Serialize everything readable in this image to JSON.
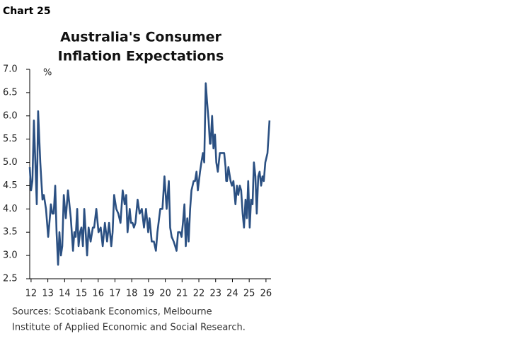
{
  "chart_data": {
    "type": "line",
    "label": "Chart 25",
    "title": [
      "Australia's Consumer",
      "Inflation Expectations"
    ],
    "y_unit": "%",
    "source": [
      "Sources: Scotiabank Economics, Melbourne",
      "Institute of Applied Economic and Social Research."
    ],
    "color": "#2b5082",
    "x": [
      11.92,
      12,
      12.08,
      12.17,
      12.34,
      12.42,
      12.55,
      12.68,
      12.76,
      12.89,
      13.02,
      13.14,
      13.18,
      13.27,
      13.35,
      13.44,
      13.52,
      13.61,
      13.69,
      13.78,
      13.86,
      13.95,
      14.07,
      14.2,
      14.37,
      14.5,
      14.58,
      14.66,
      14.75,
      14.83,
      14.92,
      15.0,
      15.09,
      15.17,
      15.34,
      15.43,
      15.55,
      15.68,
      15.76,
      15.89,
      16.02,
      16.15,
      16.27,
      16.4,
      16.53,
      16.65,
      16.78,
      16.86,
      16.95,
      17.08,
      17.2,
      17.33,
      17.46,
      17.58,
      17.67,
      17.75,
      17.88,
      17.96,
      18.05,
      18.13,
      18.22,
      18.35,
      18.47,
      18.6,
      18.73,
      18.85,
      18.98,
      19.06,
      19.19,
      19.32,
      19.44,
      19.53,
      19.7,
      19.83,
      19.95,
      20.08,
      20.21,
      20.29,
      20.38,
      20.5,
      20.59,
      20.67,
      20.76,
      20.88,
      20.97,
      21.05,
      21.14,
      21.22,
      21.31,
      21.39,
      21.48,
      21.56,
      21.69,
      21.77,
      21.86,
      21.94,
      22.07,
      22.15,
      22.24,
      22.32,
      22.41,
      22.49,
      22.58,
      22.66,
      22.7,
      22.79,
      22.87,
      22.96,
      23.04,
      23.13,
      23.25,
      23.38,
      23.51,
      23.59,
      23.63,
      23.68,
      23.76,
      23.89,
      23.97,
      24.06,
      24.18,
      24.27,
      24.35,
      24.44,
      24.52,
      24.61,
      24.69,
      24.78,
      24.86,
      24.94,
      25.03,
      25.11,
      25.2,
      25.28,
      25.37,
      25.45,
      25.54,
      25.62,
      25.71,
      25.79,
      25.87,
      25.96,
      26.09,
      26.21
    ],
    "values": [
      4.9,
      4.4,
      4.6,
      5.9,
      4.1,
      6.1,
      5.0,
      4.2,
      4.3,
      4.0,
      3.4,
      3.9,
      4.1,
      3.9,
      3.9,
      4.5,
      3.5,
      2.8,
      3.5,
      3.0,
      3.2,
      4.3,
      3.8,
      4.4,
      3.8,
      3.1,
      3.5,
      3.4,
      4.0,
      3.2,
      3.5,
      3.6,
      3.2,
      4.0,
      3.0,
      3.6,
      3.3,
      3.6,
      3.6,
      4.0,
      3.5,
      3.6,
      3.2,
      3.7,
      3.3,
      3.7,
      3.2,
      3.5,
      4.3,
      4.0,
      3.9,
      3.7,
      4.4,
      4.1,
      4.3,
      3.5,
      4.0,
      3.7,
      3.7,
      3.6,
      3.7,
      4.2,
      3.9,
      4.0,
      3.6,
      4.0,
      3.5,
      3.8,
      3.3,
      3.3,
      3.1,
      3.5,
      4.0,
      4.0,
      4.7,
      4.0,
      4.6,
      3.6,
      3.4,
      3.3,
      3.2,
      3.1,
      3.5,
      3.5,
      3.4,
      3.7,
      4.1,
      3.2,
      3.8,
      3.3,
      4.0,
      4.4,
      4.6,
      4.6,
      4.8,
      4.4,
      4.8,
      5.0,
      5.2,
      5.0,
      6.7,
      6.3,
      5.9,
      5.4,
      5.4,
      6.0,
      5.3,
      5.6,
      5.0,
      4.8,
      5.2,
      5.2,
      5.2,
      4.9,
      4.6,
      4.6,
      4.9,
      4.6,
      4.5,
      4.6,
      4.1,
      4.5,
      4.3,
      4.5,
      4.4,
      3.9,
      3.6,
      4.2,
      3.8,
      4.6,
      3.6,
      4.2,
      4.1,
      5.0,
      4.7,
      3.9,
      4.7,
      4.8,
      4.5,
      4.7,
      4.6,
      5.0,
      5.2,
      5.9
    ],
    "xlim": [
      11.92,
      26.3
    ],
    "xticks": [
      12,
      13,
      14,
      15,
      16,
      17,
      18,
      19,
      20,
      21,
      22,
      23,
      24,
      25,
      26
    ],
    "ylim": [
      2.5,
      7.0
    ],
    "yticks": [
      {
        "value": 2.5,
        "label": "2.5"
      },
      {
        "value": 3.0,
        "label": "3.0"
      },
      {
        "value": 3.5,
        "label": "3.5"
      },
      {
        "value": 4.0,
        "label": "4.0"
      },
      {
        "value": 4.5,
        "label": "4.5"
      },
      {
        "value": 5.0,
        "label": "5.0"
      },
      {
        "value": 5.5,
        "label": "5.5"
      },
      {
        "value": 6.0,
        "label": "6.0"
      },
      {
        "value": 6.5,
        "label": "6.5"
      },
      {
        "value": 7.0,
        "label": "7.0"
      }
    ]
  }
}
